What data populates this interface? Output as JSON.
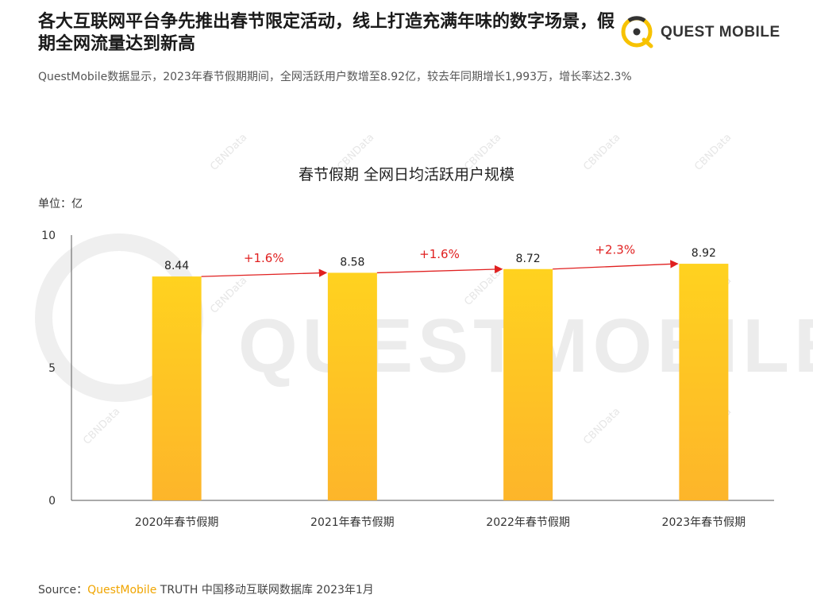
{
  "header": {
    "title": "各大互联网平台争先推出春节限定活动，线上打造充满年味的数字场景，假期全网流量达到新高",
    "subtitle": "QuestMobile数据显示，2023年春节假期期间，全网活跃用户数增至8.92亿，较去年同期增长1,993万，增长率达2.3%",
    "logo_text": "QUEST MOBILE"
  },
  "watermark": {
    "main": "QUESTMOBILE",
    "small": "CBNData"
  },
  "chart_data": {
    "type": "bar",
    "title": "春节假期 全网日均活跃用户规模",
    "unit_label": "单位：亿",
    "categories": [
      "2020年春节假期",
      "2021年春节假期",
      "2022年春节假期",
      "2023年春节假期"
    ],
    "values": [
      8.44,
      8.58,
      8.72,
      8.92
    ],
    "ylim": [
      0,
      10
    ],
    "yticks": [
      0,
      5,
      10
    ],
    "growth_labels": [
      "+1.6%",
      "+1.6%",
      "+2.3%"
    ],
    "bar_color_top": "#FFD21F",
    "bar_color_bottom": "#FDB52A",
    "arrow_color": "#E02020",
    "grid": false
  },
  "footer": {
    "source_prefix": "Source：",
    "source_brand": "QuestMobile",
    "source_rest": " TRUTH 中国移动互联网数据库 2023年1月"
  }
}
